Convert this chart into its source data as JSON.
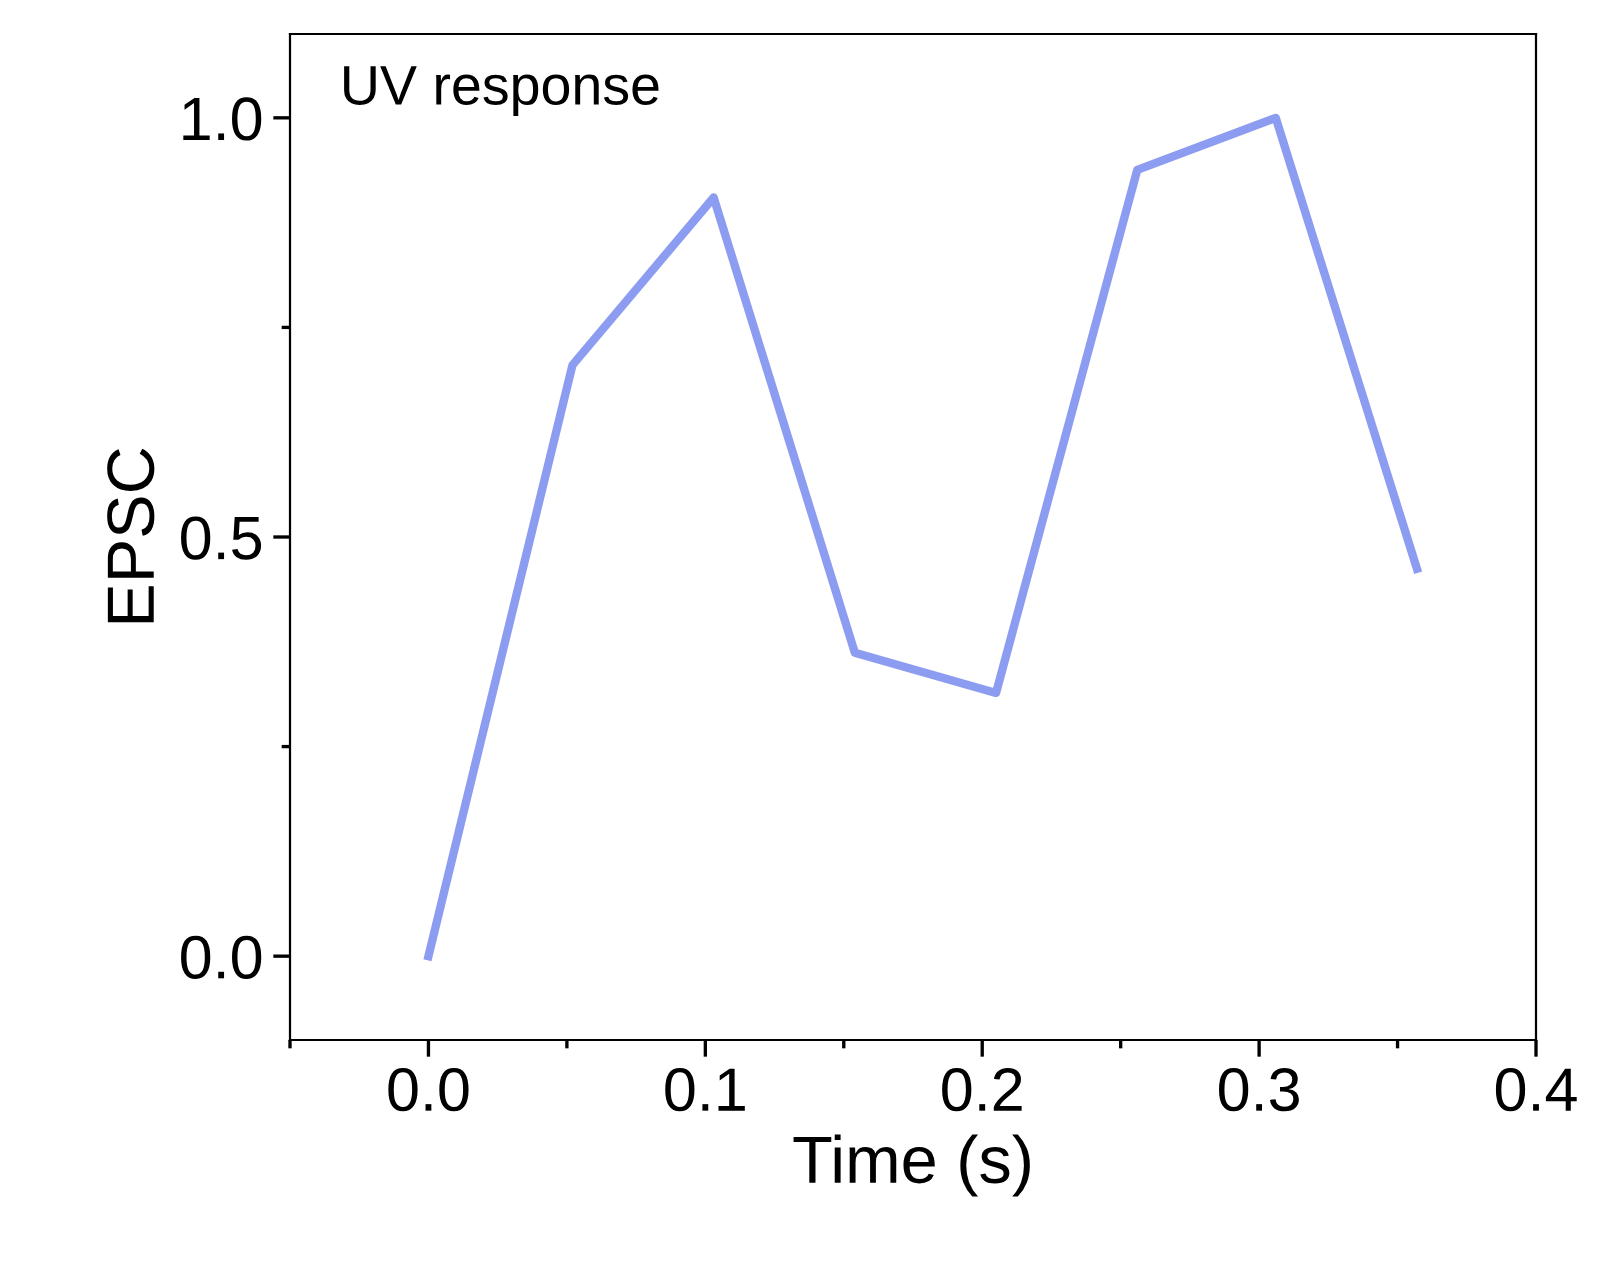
{
  "chart_data": {
    "type": "line",
    "xlabel": "Time (s)",
    "ylabel": "EPSC",
    "annotations": [
      "UV response"
    ],
    "x": [
      0.0,
      0.052,
      0.103,
      0.154,
      0.205,
      0.256,
      0.306,
      0.357
    ],
    "series": [
      {
        "color": "#8c9cf0",
        "values": [
          0.0,
          0.705,
          0.905,
          0.362,
          0.314,
          0.938,
          1.0,
          0.462
        ]
      }
    ],
    "xlim": [
      -0.05,
      0.4
    ],
    "ylim": [
      -0.1,
      1.1
    ],
    "xticks": [
      {
        "value": -0.05,
        "label": null
      },
      {
        "value": 0.0,
        "label": "0.0"
      },
      {
        "value": 0.05,
        "label": null
      },
      {
        "value": 0.1,
        "label": "0.1"
      },
      {
        "value": 0.15,
        "label": null
      },
      {
        "value": 0.2,
        "label": "0.2"
      },
      {
        "value": 0.25,
        "label": null
      },
      {
        "value": 0.3,
        "label": "0.3"
      },
      {
        "value": 0.35,
        "label": null
      },
      {
        "value": 0.4,
        "label": "0.4"
      }
    ],
    "yticks": [
      {
        "value": 0.0,
        "label": "0.0"
      },
      {
        "value": 0.25,
        "label": null
      },
      {
        "value": 0.5,
        "label": "0.5"
      },
      {
        "value": 0.75,
        "label": null
      },
      {
        "value": 1.0,
        "label": "1.0"
      }
    ],
    "grid": false,
    "legend": false,
    "marker": "none",
    "line_style": "solid"
  }
}
